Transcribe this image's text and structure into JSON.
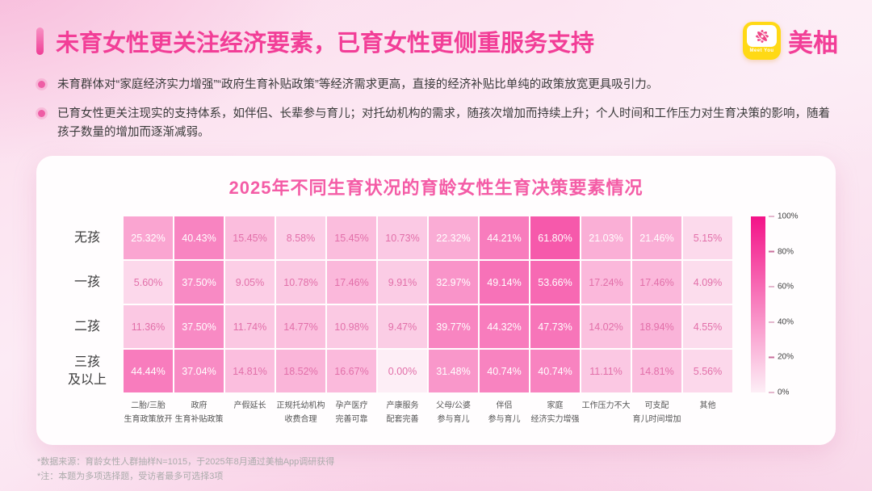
{
  "page": {
    "title": "未育女性更关注经济要素，已育女性更侧重服务支持",
    "logo": {
      "brand": "美柚",
      "badge_text": "Meet You"
    },
    "bullets": [
      "未育群体对“家庭经济实力增强”“政府生育补贴政策”等经济需求更高，直接的经济补贴比单纯的政策放宽更具吸引力。",
      "已育女性更关注现实的支持体系，如伴侣、长辈参与育儿；对托幼机构的需求，随孩次增加而持续上升；个人时间和工作压力对生育决策的影响，随着孩子数量的增加而逐渐减弱。"
    ],
    "footnotes": [
      "*数据来源：育龄女性人群抽样N=1015，于2025年8月通过美柚App调研获得",
      "*注：本题为多项选择题，受访者最多可选择3项"
    ]
  },
  "chart_data": {
    "type": "heatmap",
    "title": "2025年不同生育状况的育龄女性生育决策要素情况",
    "rows": [
      "无孩",
      "一孩",
      "二孩",
      "三孩\n及以上"
    ],
    "columns": [
      "二胎/三胎\n生育政策放开",
      "政府\n生育补贴政策",
      "产假延长",
      "正规托幼机构\n收费合理",
      "孕产医疗\n完善可靠",
      "产康服务\n配套完善",
      "父母/公婆\n参与育儿",
      "伴侣\n参与育儿",
      "家庭\n经济实力增强",
      "工作压力不大",
      "可支配\n育儿时间增加",
      "其他"
    ],
    "values": [
      [
        25.32,
        40.43,
        15.45,
        8.58,
        15.45,
        10.73,
        22.32,
        44.21,
        61.8,
        21.03,
        21.46,
        5.15
      ],
      [
        5.6,
        37.5,
        9.05,
        10.78,
        17.46,
        9.91,
        32.97,
        49.14,
        53.66,
        17.24,
        17.46,
        4.09
      ],
      [
        11.36,
        37.5,
        11.74,
        14.77,
        10.98,
        9.47,
        39.77,
        44.32,
        47.73,
        14.02,
        18.94,
        4.55
      ],
      [
        44.44,
        37.04,
        14.81,
        18.52,
        16.67,
        0.0,
        31.48,
        40.74,
        40.74,
        11.11,
        14.81,
        5.56
      ]
    ],
    "unit": "%",
    "value_range": [
      0,
      100
    ],
    "colorbar": {
      "ticks": [
        "100%",
        "80%",
        "60%",
        "40%",
        "20%",
        "0%"
      ],
      "color_high": "#f31388",
      "color_low": "#fdeef6",
      "position": "right"
    },
    "cell_text_color_high": "#ffffff",
    "cell_text_color_low": "#e26fa9"
  }
}
